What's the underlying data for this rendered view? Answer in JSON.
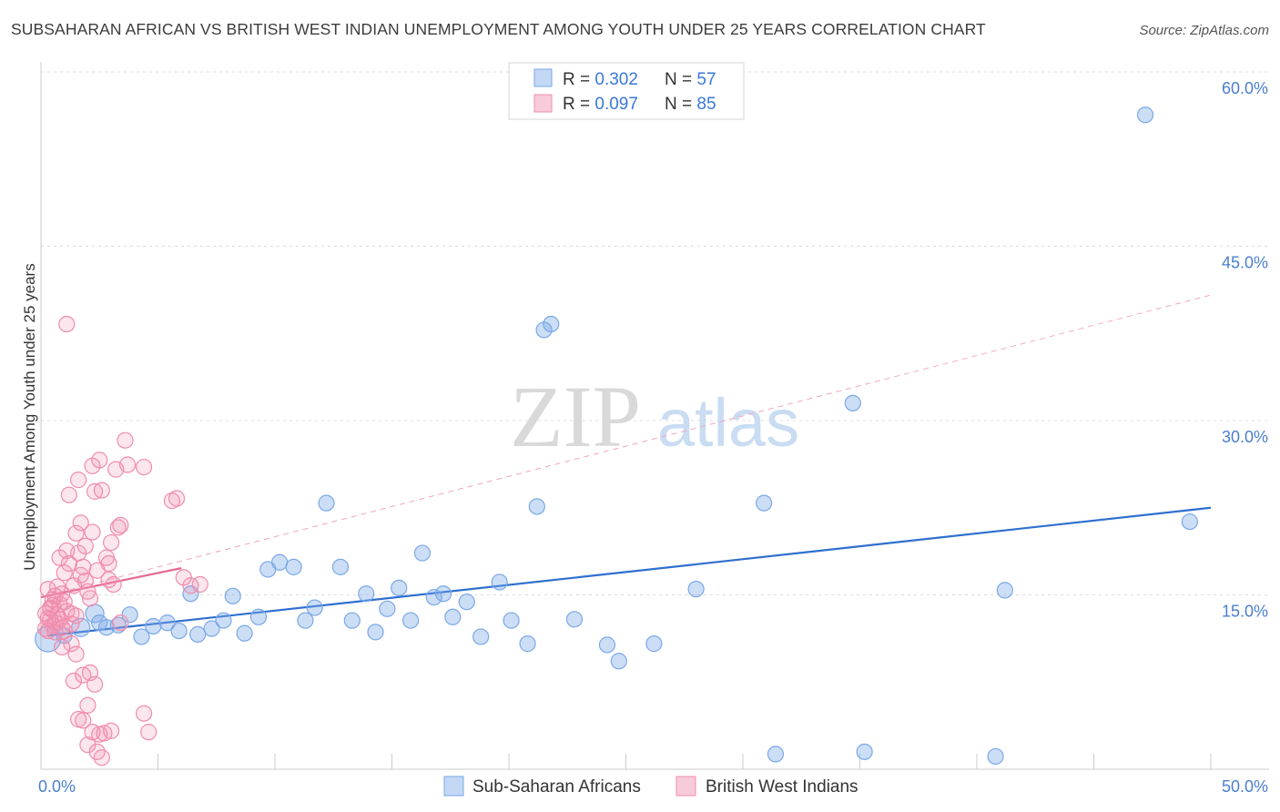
{
  "title": "SUBSAHARAN AFRICAN VS BRITISH WEST INDIAN UNEMPLOYMENT AMONG YOUTH UNDER 25 YEARS CORRELATION CHART",
  "source": "Source: ZipAtlas.com",
  "watermark": {
    "zip": "ZIP",
    "atlas": "atlas"
  },
  "colors": {
    "blue": "#7aa8e8",
    "blue_fill": "rgba(122,168,232,0.35)",
    "blue_line": "#2f6fcf",
    "pink": "#f08cad",
    "pink_fill": "rgba(240,140,173,0.30)",
    "pink_line": "#e56a91",
    "axis_label": "#4a7fcf"
  },
  "legend_top": [
    {
      "r_label": "R = ",
      "r_value": "0.302",
      "n_label": "N = ",
      "n_value": "57"
    },
    {
      "r_label": "R = ",
      "r_value": "0.097",
      "n_label": "N = ",
      "n_value": "85"
    }
  ],
  "chart_data": {
    "type": "scatter",
    "title": "SUBSAHARAN AFRICAN VS BRITISH WEST INDIAN UNEMPLOYMENT AMONG YOUTH UNDER 25 YEARS CORRELATION CHART",
    "xlabel": "",
    "ylabel": "Unemployment Among Youth under 25 years",
    "xlim": [
      0,
      50
    ],
    "ylim": [
      0,
      60
    ],
    "x_tick_labels": [
      "0.0%",
      "50.0%"
    ],
    "y_ticks": [
      15,
      30,
      45,
      60
    ],
    "y_tick_labels": [
      "15.0%",
      "30.0%",
      "45.0%",
      "60.0%"
    ],
    "grid": "horizontal dashed",
    "legend_placement": "top-center and bottom",
    "series": [
      {
        "name": "Sub-Saharan Africans",
        "r": 0.302,
        "n": 57,
        "trend": {
          "x": [
            0.3,
            50
          ],
          "y": [
            11.5,
            22.5
          ]
        },
        "points": [
          [
            0.3,
            11.2
          ],
          [
            1.0,
            11.5
          ],
          [
            1.7,
            12.2
          ],
          [
            2.3,
            13.4
          ],
          [
            2.8,
            12.2
          ],
          [
            3.3,
            12.4
          ],
          [
            3.8,
            13.3
          ],
          [
            4.3,
            11.4
          ],
          [
            4.8,
            12.3
          ],
          [
            5.4,
            12.6
          ],
          [
            5.9,
            11.9
          ],
          [
            6.4,
            15.1
          ],
          [
            6.7,
            11.6
          ],
          [
            7.3,
            12.1
          ],
          [
            7.8,
            12.8
          ],
          [
            8.2,
            14.9
          ],
          [
            8.7,
            11.7
          ],
          [
            9.3,
            13.1
          ],
          [
            9.7,
            17.2
          ],
          [
            10.2,
            17.8
          ],
          [
            10.8,
            17.4
          ],
          [
            11.3,
            12.8
          ],
          [
            11.7,
            13.9
          ],
          [
            12.2,
            22.9
          ],
          [
            12.8,
            17.4
          ],
          [
            13.3,
            12.8
          ],
          [
            13.9,
            15.1
          ],
          [
            14.3,
            11.8
          ],
          [
            14.8,
            13.8
          ],
          [
            15.3,
            15.6
          ],
          [
            15.8,
            12.8
          ],
          [
            16.3,
            18.6
          ],
          [
            16.8,
            14.8
          ],
          [
            17.2,
            15.1
          ],
          [
            17.6,
            13.1
          ],
          [
            18.2,
            14.4
          ],
          [
            18.8,
            11.4
          ],
          [
            19.6,
            16.1
          ],
          [
            20.1,
            12.8
          ],
          [
            20.8,
            10.8
          ],
          [
            21.2,
            22.6
          ],
          [
            21.5,
            37.8
          ],
          [
            21.8,
            38.3
          ],
          [
            22.8,
            12.9
          ],
          [
            24.2,
            10.7
          ],
          [
            24.7,
            9.3
          ],
          [
            26.2,
            10.8
          ],
          [
            28.0,
            15.5
          ],
          [
            30.9,
            22.9
          ],
          [
            31.4,
            1.3
          ],
          [
            34.7,
            31.5
          ],
          [
            35.2,
            1.5
          ],
          [
            40.8,
            1.1
          ],
          [
            41.2,
            15.4
          ],
          [
            47.2,
            56.3
          ],
          [
            49.1,
            21.3
          ],
          [
            2.5,
            12.6
          ]
        ]
      },
      {
        "name": "British West Indians",
        "r": 0.097,
        "n": 85,
        "trend": {
          "x": [
            0,
            6.0
          ],
          "y": [
            14.8,
            17.3
          ]
        },
        "points": [
          [
            0.2,
            12.1
          ],
          [
            0.3,
            13.0
          ],
          [
            0.4,
            13.8
          ],
          [
            0.5,
            14.6
          ],
          [
            0.6,
            12.6
          ],
          [
            0.3,
            15.5
          ],
          [
            0.7,
            13.3
          ],
          [
            0.8,
            14.2
          ],
          [
            0.5,
            12.4
          ],
          [
            0.9,
            15.1
          ],
          [
            1.0,
            16.9
          ],
          [
            1.1,
            18.8
          ],
          [
            1.2,
            17.7
          ],
          [
            1.0,
            14.4
          ],
          [
            1.3,
            13.4
          ],
          [
            0.6,
            11.8
          ],
          [
            0.8,
            12.9
          ],
          [
            1.4,
            15.8
          ],
          [
            1.5,
            20.3
          ],
          [
            1.6,
            18.6
          ],
          [
            1.7,
            21.2
          ],
          [
            1.8,
            17.4
          ],
          [
            1.9,
            16.2
          ],
          [
            2.0,
            15.3
          ],
          [
            2.1,
            14.7
          ],
          [
            1.2,
            23.6
          ],
          [
            1.6,
            24.9
          ],
          [
            2.2,
            26.1
          ],
          [
            2.3,
            23.9
          ],
          [
            2.5,
            26.6
          ],
          [
            2.6,
            24.0
          ],
          [
            2.8,
            18.2
          ],
          [
            2.9,
            17.7
          ],
          [
            3.0,
            19.5
          ],
          [
            3.1,
            15.9
          ],
          [
            3.3,
            20.8
          ],
          [
            3.4,
            21.0
          ],
          [
            3.6,
            28.3
          ],
          [
            3.7,
            26.2
          ],
          [
            3.2,
            25.8
          ],
          [
            4.4,
            26.0
          ],
          [
            1.1,
            38.3
          ],
          [
            0.9,
            10.5
          ],
          [
            1.3,
            10.8
          ],
          [
            1.5,
            9.9
          ],
          [
            1.4,
            7.6
          ],
          [
            1.8,
            8.1
          ],
          [
            2.1,
            8.3
          ],
          [
            2.3,
            7.3
          ],
          [
            2.0,
            5.5
          ],
          [
            1.6,
            4.3
          ],
          [
            1.8,
            4.2
          ],
          [
            2.2,
            3.2
          ],
          [
            2.5,
            3.0
          ],
          [
            2.7,
            3.1
          ],
          [
            3.0,
            3.3
          ],
          [
            2.4,
            1.5
          ],
          [
            2.0,
            2.1
          ],
          [
            2.6,
            1.0
          ],
          [
            4.4,
            4.8
          ],
          [
            4.6,
            3.2
          ],
          [
            5.6,
            23.1
          ],
          [
            5.8,
            23.3
          ],
          [
            6.1,
            16.5
          ],
          [
            6.4,
            15.8
          ],
          [
            6.8,
            15.9
          ],
          [
            0.4,
            13.9
          ],
          [
            0.6,
            14.9
          ],
          [
            0.9,
            12.2
          ],
          [
            1.1,
            13.6
          ],
          [
            0.2,
            13.4
          ],
          [
            0.4,
            12.9
          ],
          [
            0.7,
            15.7
          ],
          [
            0.3,
            11.9
          ],
          [
            0.5,
            14.1
          ],
          [
            1.7,
            16.7
          ],
          [
            2.4,
            17.1
          ],
          [
            2.9,
            16.3
          ],
          [
            3.4,
            12.6
          ],
          [
            0.8,
            18.2
          ],
          [
            1.9,
            19.2
          ],
          [
            2.2,
            20.4
          ],
          [
            1.0,
            11.9
          ],
          [
            1.3,
            12.5
          ],
          [
            1.5,
            13.2
          ]
        ]
      }
    ],
    "diagonal_dashed_trend": {
      "x": [
        0,
        50
      ],
      "y": [
        14.8,
        40.8
      ]
    }
  }
}
